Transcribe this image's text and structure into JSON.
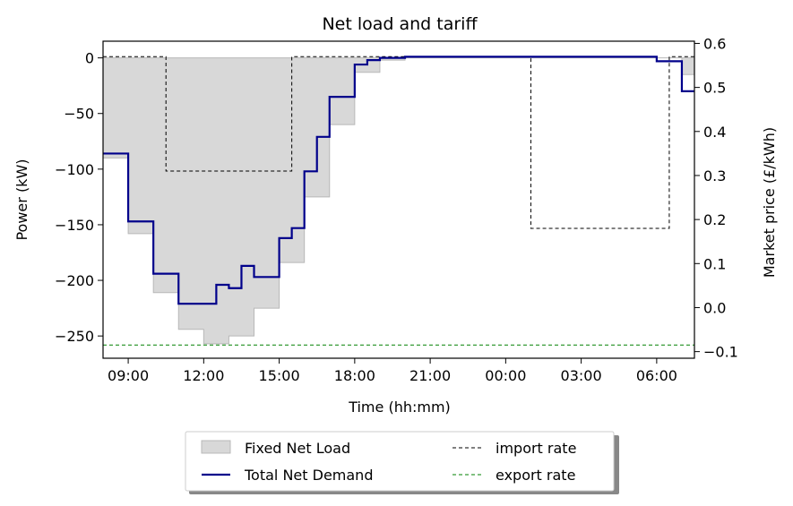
{
  "chart_data": {
    "type": "line",
    "title": "Net load and tariff",
    "xlabel": "Time (hh:mm)",
    "ylabel": "Power (kW)",
    "y2label": "Market price (£/kWh)",
    "xlim": [
      8.0,
      31.5
    ],
    "ylim": [
      -270,
      15
    ],
    "y2lim": [
      -0.115,
      0.605
    ],
    "x_ticks": [
      {
        "value": 9,
        "label": "09:00"
      },
      {
        "value": 12,
        "label": "12:00"
      },
      {
        "value": 15,
        "label": "15:00"
      },
      {
        "value": 18,
        "label": "18:00"
      },
      {
        "value": 21,
        "label": "21:00"
      },
      {
        "value": 24,
        "label": "00:00"
      },
      {
        "value": 27,
        "label": "03:00"
      },
      {
        "value": 30,
        "label": "06:00"
      }
    ],
    "y_ticks": [
      {
        "value": 0,
        "label": "0"
      },
      {
        "value": -50,
        "label": "−50"
      },
      {
        "value": -100,
        "label": "−100"
      },
      {
        "value": -150,
        "label": "−150"
      },
      {
        "value": -200,
        "label": "−200"
      },
      {
        "value": -250,
        "label": "−250"
      }
    ],
    "y2_ticks": [
      {
        "value": 0.6,
        "label": "0.6"
      },
      {
        "value": 0.5,
        "label": "0.5"
      },
      {
        "value": 0.4,
        "label": "0.4"
      },
      {
        "value": 0.3,
        "label": "0.3"
      },
      {
        "value": 0.2,
        "label": "0.2"
      },
      {
        "value": 0.1,
        "label": "0.1"
      },
      {
        "value": 0.0,
        "label": "0.0"
      },
      {
        "value": -0.1,
        "label": "−0.1"
      }
    ],
    "grid": false,
    "legend_position": "bottom-center",
    "series": [
      {
        "name": "Fixed Net Load",
        "kind": "step-area",
        "axis": "left",
        "color": "#d8d8d8",
        "edge_color": "#b8b8b8",
        "x": [
          8.0,
          9.0,
          10.0,
          11.0,
          12.0,
          13.0,
          14.0,
          15.0,
          16.0,
          17.0,
          18.0,
          19.0,
          20.0,
          21.0,
          22.0,
          23.0,
          24.0,
          25.0,
          26.0,
          27.0,
          28.0,
          29.0,
          30.0,
          31.0
        ],
        "values": [
          -90,
          -158,
          -211,
          -244,
          -257,
          -250,
          -225,
          -184,
          -125,
          -60,
          -13,
          -2,
          0,
          0,
          0,
          0,
          0,
          0,
          0,
          0,
          0,
          0,
          0,
          -15
        ],
        "x_end": 31.5
      },
      {
        "name": "Total Net Demand",
        "kind": "step-line",
        "axis": "left",
        "color": "#00008b",
        "x": [
          8.0,
          9.0,
          10.0,
          11.0,
          12.0,
          12.5,
          13.0,
          13.5,
          14.0,
          15.0,
          15.5,
          16.0,
          16.5,
          17.0,
          17.5,
          18.0,
          18.5,
          19.0,
          19.5,
          20.0,
          20.5,
          21.0,
          30.0,
          30.5,
          31.0
        ],
        "values": [
          -86,
          -147,
          -194,
          -221,
          -221,
          -204,
          -207,
          -187,
          -197,
          -162,
          -153,
          -102,
          -71,
          -35,
          -35,
          -6,
          -2,
          0,
          0,
          1,
          1,
          1,
          -3,
          -3,
          -30
        ],
        "x_end": 31.5
      },
      {
        "name": "import rate",
        "kind": "step-line-dashed",
        "axis": "right",
        "color": "#000000",
        "x": [
          8.0,
          10.5,
          15.5,
          25.0,
          30.5
        ],
        "values": [
          0.57,
          0.31,
          0.57,
          0.18,
          0.57
        ],
        "x_end": 31.5
      },
      {
        "name": "export rate",
        "kind": "hline-dashed",
        "axis": "right",
        "color": "#008000",
        "values": [
          -0.085
        ]
      }
    ]
  }
}
